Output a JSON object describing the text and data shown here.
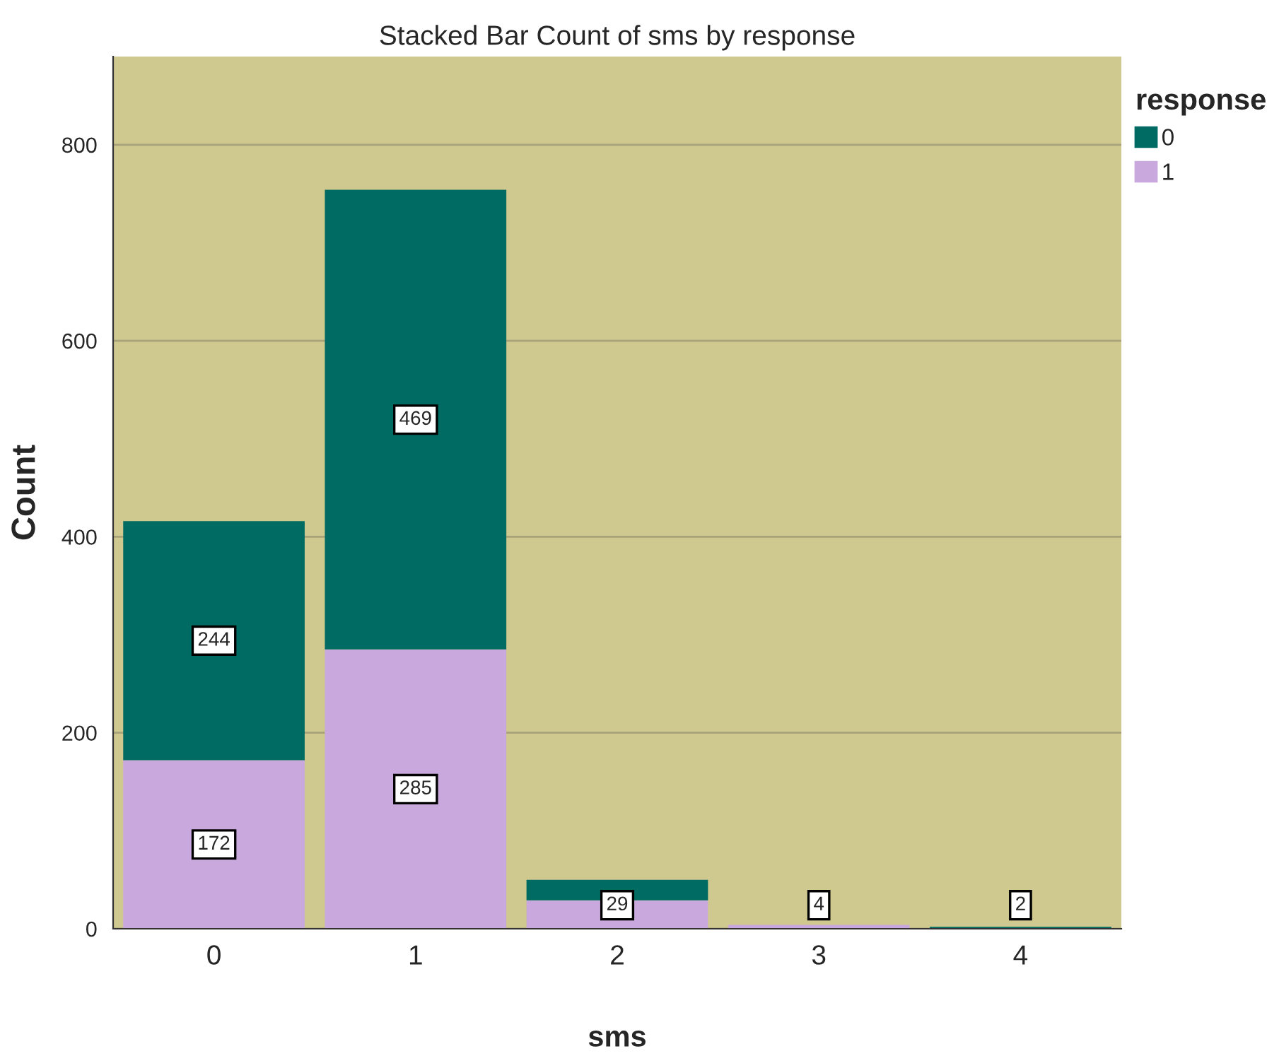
{
  "chart_data": {
    "type": "bar",
    "stacked": true,
    "title": "Stacked Bar Count of sms by response",
    "xlabel": "sms",
    "ylabel": "Count",
    "legend_title": "response",
    "legend": "top right",
    "categories": [
      "0",
      "1",
      "2",
      "3",
      "4"
    ],
    "series": [
      {
        "name": "1",
        "color": "#c9a9dd",
        "values": [
          172,
          285,
          29,
          4,
          0
        ],
        "value_labels": [
          "172",
          "285",
          "29",
          "4",
          null
        ]
      },
      {
        "name": "0",
        "color": "#006b63",
        "values": [
          244,
          469,
          21,
          0,
          2
        ],
        "value_labels": [
          "244",
          "469",
          null,
          null,
          "2"
        ]
      }
    ],
    "ylim": [
      0,
      890
    ],
    "yticks": [
      0,
      200,
      400,
      600,
      800
    ],
    "grid": "y"
  }
}
